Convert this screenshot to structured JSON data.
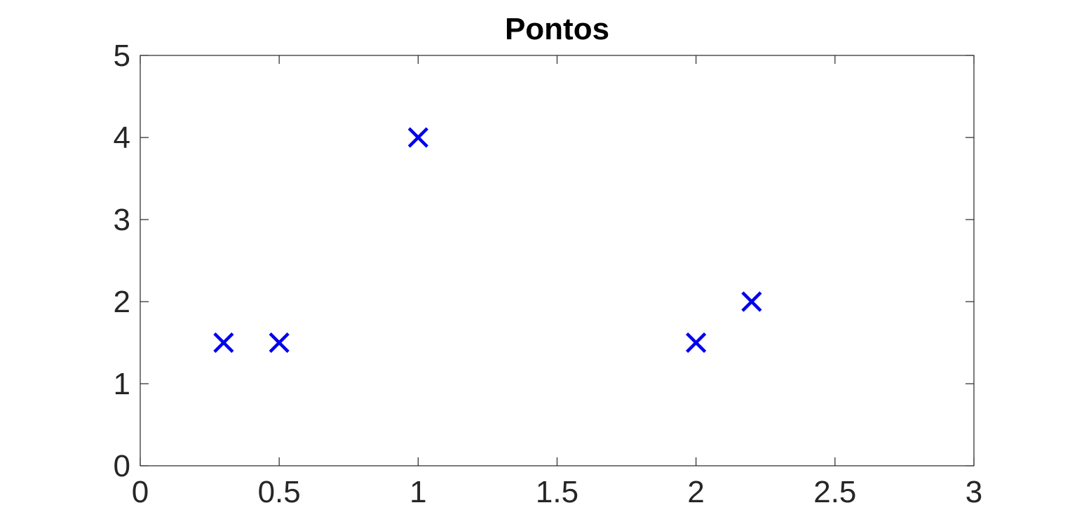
{
  "chart_data": {
    "type": "scatter",
    "title": "Pontos",
    "xlabel": "",
    "ylabel": "",
    "xlim": [
      0,
      3
    ],
    "ylim": [
      0,
      5
    ],
    "x_ticks": [
      0,
      0.5,
      1,
      1.5,
      2,
      2.5,
      3
    ],
    "x_tick_labels": [
      "0",
      "0.5",
      "1",
      "1.5",
      "2",
      "2.5",
      "3"
    ],
    "y_ticks": [
      0,
      1,
      2,
      3,
      4,
      5
    ],
    "y_tick_labels": [
      "0",
      "1",
      "2",
      "3",
      "4",
      "5"
    ],
    "grid": false,
    "box": true,
    "series": [
      {
        "marker": "x",
        "color": "#0000ee",
        "x": [
          0.3,
          0.5,
          1,
          2,
          2.2
        ],
        "y": [
          1.5,
          1.5,
          4,
          1.5,
          2
        ]
      }
    ]
  }
}
